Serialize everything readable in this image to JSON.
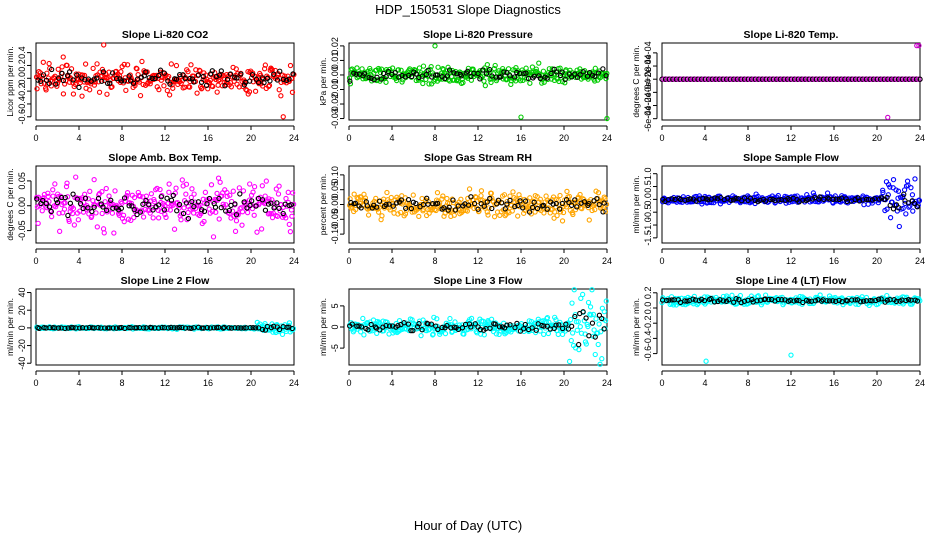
{
  "figure": {
    "title": "HDP_150531  Slope Diagnostics",
    "xlabel": "Hour of Day (UTC)"
  },
  "chart_data": [
    {
      "type": "scatter",
      "title": "Slope Li-820 CO2",
      "ylabel": "Licor ppm per min.",
      "color": "#ff0000",
      "xlim": [
        0,
        24
      ],
      "ylim": [
        -0.65,
        0.55
      ],
      "xticks": [
        0,
        4,
        8,
        12,
        16,
        20,
        24
      ],
      "yticks": [
        -0.6,
        -0.4,
        -0.2,
        0.0,
        0.2,
        0.4
      ],
      "ytick_labels": [
        "-0.6",
        "-0.4",
        "-0.2",
        "0.0",
        "0.2",
        "0.4"
      ],
      "spread": 0.16,
      "series": "normal"
    },
    {
      "type": "scatter",
      "title": "Slope Li-820 Pressure",
      "ylabel": "kPa per min.",
      "color": "#00cc00",
      "xlim": [
        0,
        24
      ],
      "ylim": [
        -0.031,
        0.022
      ],
      "xticks": [
        0,
        4,
        8,
        12,
        16,
        20,
        24
      ],
      "yticks": [
        -0.03,
        -0.02,
        -0.01,
        0.0,
        0.01,
        0.02
      ],
      "ytick_labels": [
        "-0.03",
        "-0.02",
        "-0.01",
        "0.00",
        "0.01",
        "0.02"
      ],
      "spread": 0.004,
      "series": "normal"
    },
    {
      "type": "scatter",
      "title": "Slope Li-820 Temp.",
      "ylabel": "degrees C per min.",
      "color": "#cc00cc",
      "xlim": [
        0,
        24
      ],
      "ylim": [
        -0.00062,
        0.00055
      ],
      "xticks": [
        0,
        4,
        8,
        12,
        16,
        20,
        24
      ],
      "yticks": [
        -0.0006,
        -0.0004,
        -0.0002,
        0.0,
        0.0002,
        0.0004
      ],
      "ytick_labels": [
        "-6e-04",
        "-4e-04",
        "-2e-04",
        "0e+00",
        "2e-04",
        "4e-04"
      ],
      "spread": 0,
      "series": "flat"
    },
    {
      "type": "scatter",
      "title": "Slope Amb. Box Temp.",
      "ylabel": "degrees C per min.",
      "color": "#ff00ff",
      "xlim": [
        0,
        24
      ],
      "ylim": [
        -0.075,
        0.08
      ],
      "xticks": [
        0,
        4,
        8,
        12,
        16,
        20,
        24
      ],
      "yticks": [
        -0.05,
        0.0,
        0.05
      ],
      "ytick_labels": [
        "-0.05",
        "0.00",
        "0.05"
      ],
      "spread": 0.03,
      "series": "normal"
    },
    {
      "type": "scatter",
      "title": "Slope Gas Stream RH",
      "ylabel": "percent per min.",
      "color": "#ffa500",
      "xlim": [
        0,
        24
      ],
      "ylim": [
        -0.13,
        0.13
      ],
      "xticks": [
        0,
        4,
        8,
        12,
        16,
        20,
        24
      ],
      "yticks": [
        -0.1,
        -0.05,
        0.0,
        0.05,
        0.1
      ],
      "ytick_labels": [
        "-0.10",
        "-0.05",
        "0.00",
        "0.05",
        "0.10"
      ],
      "spread": 0.03,
      "series": "normal"
    },
    {
      "type": "scatter",
      "title": "Slope Sample Flow",
      "ylabel": "ml/min per min.",
      "color": "#0000ff",
      "xlim": [
        0,
        24
      ],
      "ylim": [
        -1.7,
        1.3
      ],
      "xticks": [
        0,
        4,
        8,
        12,
        16,
        20,
        24
      ],
      "yticks": [
        -1.5,
        -1.0,
        -0.5,
        0.0,
        0.5,
        1.0
      ],
      "ytick_labels": [
        "-1.5",
        "-1.0",
        "-0.5",
        "0.0",
        "0.5",
        "1.0"
      ],
      "spread": 0.12,
      "series": "tailspread"
    },
    {
      "type": "scatter",
      "title": "Slope Line 2 Flow",
      "ylabel": "ml/min per min.",
      "color": "#00ffff",
      "xlim": [
        0,
        24
      ],
      "ylim": [
        -42,
        44
      ],
      "xticks": [
        0,
        4,
        8,
        12,
        16,
        20,
        24
      ],
      "yticks": [
        -40,
        -20,
        0,
        20,
        40
      ],
      "ytick_labels": [
        "-40",
        "-20",
        "0",
        "20",
        "40"
      ],
      "spread": 0.8,
      "series": "tailspread"
    },
    {
      "type": "scatter",
      "title": "Slope Line 3 Flow",
      "ylabel": "ml/min per min.",
      "color": "#00ffff",
      "xlim": [
        0,
        24
      ],
      "ylim": [
        -9,
        9
      ],
      "xticks": [
        0,
        4,
        8,
        12,
        16,
        20,
        24
      ],
      "yticks": [
        -5,
        0,
        5
      ],
      "ytick_labels": [
        "-5",
        "0",
        "5"
      ],
      "spread": 1.3,
      "series": "tailspread"
    },
    {
      "type": "scatter",
      "title": "Slope Line 4 (LT) Flow",
      "ylabel": "ml/min per min.",
      "color": "#00ffff",
      "xlim": [
        0,
        24
      ],
      "ylim": [
        -0.75,
        0.25
      ],
      "xticks": [
        0,
        4,
        8,
        12,
        16,
        20,
        24
      ],
      "yticks": [
        -0.6,
        -0.4,
        -0.2,
        0.0,
        0.2
      ],
      "ytick_labels": [
        "-0.6",
        "-0.4",
        "-0.2",
        "0.0",
        "0.2"
      ],
      "spread": 0.04,
      "series": "offsetpos"
    }
  ]
}
